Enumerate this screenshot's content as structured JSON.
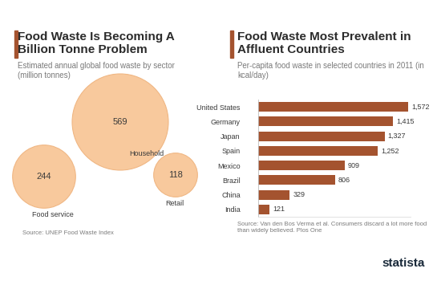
{
  "chart_data": [
    {
      "type": "bubble",
      "title": "Food Waste Is Becoming A Billion Tonne Problem",
      "subtitle": "Estimated annual global food waste by sector (million tonnes)",
      "categories": [
        "Food service",
        "Household",
        "Retail"
      ],
      "values": [
        244,
        569,
        118
      ],
      "color": "#f8c99d",
      "data_labels": true,
      "tick_labels": false,
      "source": "Source: UNEP Food Waste Index"
    },
    {
      "type": "bar",
      "orientation": "horizontal",
      "title": "Food Waste Most Prevalent in Affluent Countries",
      "subtitle": "Per-capita food waste in selected countries in 2011 (in kcal/day)",
      "categories": [
        "United States",
        "Germany",
        "Japan",
        "Spain",
        "Mexico",
        "Brazil",
        "China",
        "India"
      ],
      "values": [
        1572,
        1415,
        1327,
        1252,
        909,
        806,
        329,
        121
      ],
      "value_labels": [
        "1,572",
        "1,415",
        "1,327",
        "1,252",
        "909",
        "806",
        "329",
        "121"
      ],
      "color": "#a4532f",
      "data_labels": true,
      "tick_labels": "y",
      "xlim": [
        0,
        1600
      ],
      "xticks": [],
      "source": "Source: Van den Bos Verma et al. Consumers discard a lot more food than widely believed. Plos One"
    }
  ],
  "brand": "statista"
}
